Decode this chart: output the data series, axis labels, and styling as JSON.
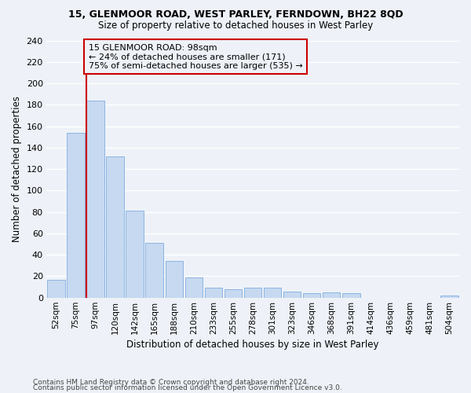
{
  "title1": "15, GLENMOOR ROAD, WEST PARLEY, FERNDOWN, BH22 8QD",
  "title2": "Size of property relative to detached houses in West Parley",
  "xlabel": "Distribution of detached houses by size in West Parley",
  "ylabel": "Number of detached properties",
  "footnote1": "Contains HM Land Registry data © Crown copyright and database right 2024.",
  "footnote2": "Contains public sector information licensed under the Open Government Licence v3.0.",
  "categories": [
    "52sqm",
    "75sqm",
    "97sqm",
    "120sqm",
    "142sqm",
    "165sqm",
    "188sqm",
    "210sqm",
    "233sqm",
    "255sqm",
    "278sqm",
    "301sqm",
    "323sqm",
    "346sqm",
    "368sqm",
    "391sqm",
    "414sqm",
    "436sqm",
    "459sqm",
    "481sqm",
    "504sqm"
  ],
  "values": [
    17,
    154,
    184,
    132,
    81,
    51,
    34,
    19,
    9,
    8,
    9,
    9,
    6,
    4,
    5,
    4,
    0,
    0,
    0,
    0,
    2
  ],
  "bar_color": "#c6d9f0",
  "bar_edge_color": "#8db4e2",
  "annotation_line_color": "#cc0000",
  "annotation_box_edge_color": "#cc0000",
  "annotation_box_text": "15 GLENMOOR ROAD: 98sqm\n← 24% of detached houses are smaller (171)\n75% of semi-detached houses are larger (535) →",
  "ylim": [
    0,
    240
  ],
  "yticks": [
    0,
    20,
    40,
    60,
    80,
    100,
    120,
    140,
    160,
    180,
    200,
    220,
    240
  ],
  "background_color": "#eef2f8",
  "grid_color": "#ffffff",
  "annotation_line_index": 2
}
